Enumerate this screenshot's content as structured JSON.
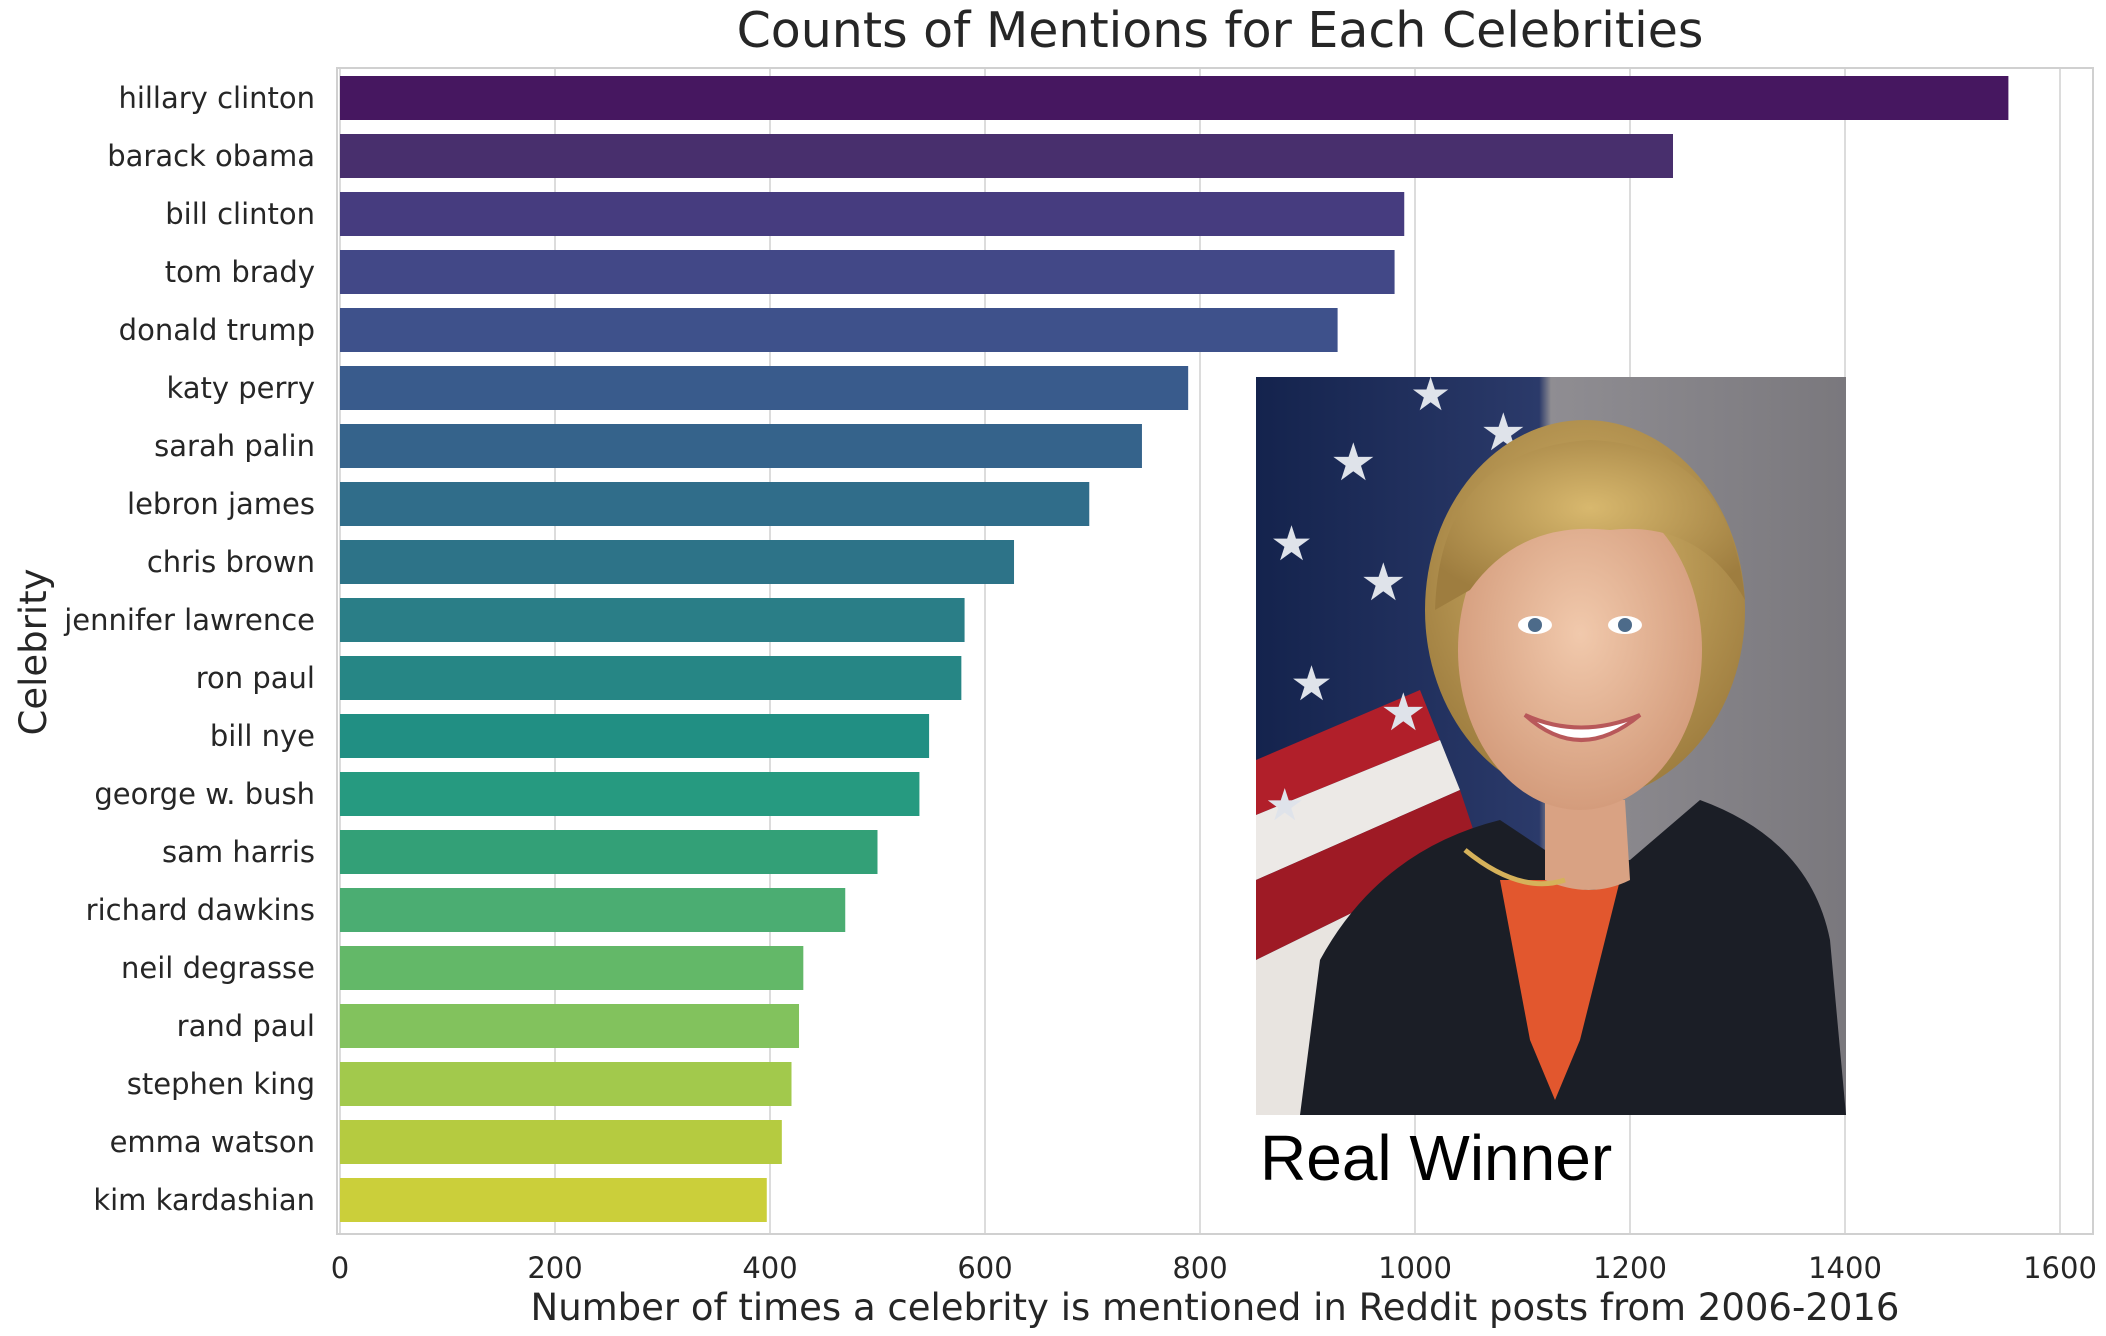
{
  "chart_data": {
    "type": "bar",
    "orientation": "horizontal",
    "title": "Counts of Mentions for Each Celebrities",
    "xlabel": "Number of times a celebrity is mentioned in Reddit posts from 2006-2016",
    "ylabel": "Celebrity",
    "xlim": [
      0,
      1630
    ],
    "xticks": [
      0,
      200,
      400,
      600,
      800,
      1000,
      1200,
      1400,
      1600
    ],
    "grid": true,
    "palette": "viridis",
    "categories": [
      "hillary clinton",
      "barack obama",
      "bill clinton",
      "tom brady",
      "donald trump",
      "katy perry",
      "sarah palin",
      "lebron james",
      "chris brown",
      "jennifer lawrence",
      "ron paul",
      "bill nye",
      "george w. bush",
      "sam harris",
      "richard dawkins",
      "neil degrasse",
      "rand paul",
      "stephen king",
      "emma watson",
      "kim kardashian"
    ],
    "values": [
      1552,
      1240,
      990,
      981,
      928,
      789,
      746,
      697,
      627,
      581,
      578,
      548,
      539,
      500,
      470,
      431,
      427,
      420,
      411,
      397
    ],
    "colors": [
      "#461760",
      "#482f6d",
      "#463c7f",
      "#424887",
      "#3e518b",
      "#395b8c",
      "#35638b",
      "#306d8a",
      "#2d7388",
      "#2a7e87",
      "#268685",
      "#218f83",
      "#269a80",
      "#33a077",
      "#4bad72",
      "#63b868",
      "#82c25d",
      "#a2c94c",
      "#b5cb40",
      "#cbcf3a"
    ],
    "annotation": {
      "text": "Real Winner",
      "image": "photo-of-hillary-clinton"
    }
  }
}
